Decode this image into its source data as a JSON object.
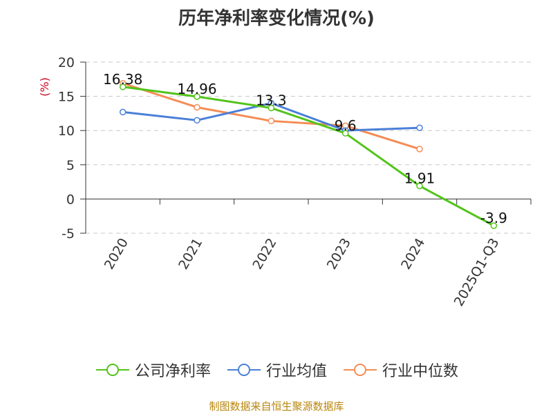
{
  "chart_data": {
    "type": "line",
    "title": "历年净利率变化情况(%)",
    "ylabel": "(%)",
    "xlabel": "",
    "categories": [
      "2020",
      "2021",
      "2022",
      "2023",
      "2024",
      "2025Q1-Q3"
    ],
    "ylim": [
      -5,
      20
    ],
    "yticks": [
      20,
      15,
      10,
      5,
      0,
      -5
    ],
    "grid": true,
    "legend_position": "bottom",
    "series": [
      {
        "name": "公司净利率",
        "color": "#52c41a",
        "values": [
          16.38,
          14.96,
          13.3,
          9.6,
          1.91,
          -3.9
        ],
        "labels": [
          "16.38",
          "14.96",
          "13.3",
          "9.6",
          "1.91",
          "-3.9"
        ]
      },
      {
        "name": "行业均值",
        "color": "#4a7fd8",
        "values": [
          12.7,
          11.5,
          14.0,
          10.0,
          10.4,
          null
        ]
      },
      {
        "name": "行业中位数",
        "color": "#f58c55",
        "values": [
          16.9,
          13.4,
          11.4,
          10.7,
          7.3,
          null
        ]
      }
    ]
  },
  "source_text": "制图数据来自恒生聚源数据库"
}
